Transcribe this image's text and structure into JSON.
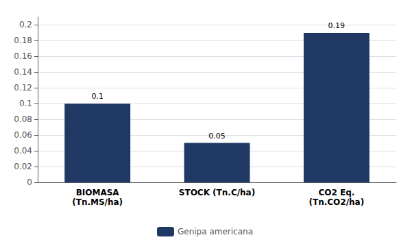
{
  "chart_data": {
    "type": "bar",
    "categories": [
      "BIOMASA\n(Tn.MS/ha)",
      "STOCK (Tn.C/ha)",
      "CO2 Eq.\n(Tn.CO2/ha)"
    ],
    "series": [
      {
        "name": "Genipa americana",
        "color": "#1F3864",
        "values": [
          0.1,
          0.05,
          0.19
        ]
      }
    ],
    "ylim": [
      0,
      0.21
    ],
    "yticks": [
      0,
      0.02,
      0.04,
      0.06,
      0.08,
      0.1,
      0.12,
      0.14,
      0.16,
      0.18,
      0.2
    ],
    "grid": true,
    "legend": "bottom",
    "data_labels": true
  }
}
